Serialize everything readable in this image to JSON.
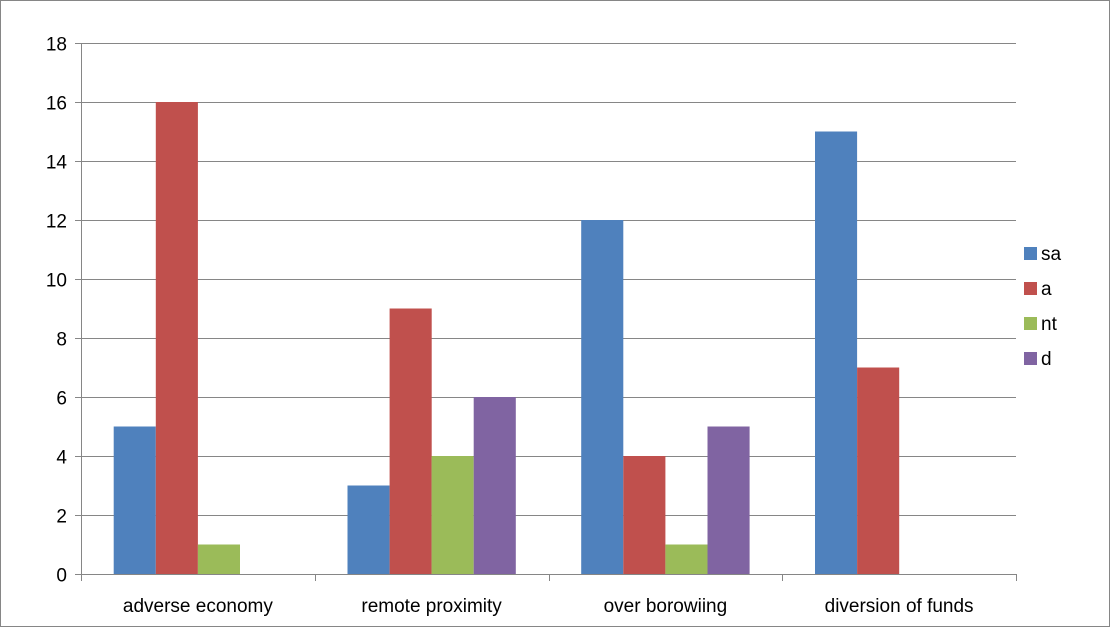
{
  "chart_data": {
    "type": "bar",
    "title": "",
    "xlabel": "",
    "ylabel": "",
    "categories": [
      "adverse economy",
      "remote proximity",
      "over borowiing",
      "diversion of funds"
    ],
    "series": [
      {
        "name": "sa",
        "color": "#4F81BD",
        "values": [
          5,
          3,
          12,
          15
        ]
      },
      {
        "name": "a",
        "color": "#C0504D",
        "values": [
          16,
          9,
          4,
          7
        ]
      },
      {
        "name": "nt",
        "color": "#9BBB59",
        "values": [
          1,
          4,
          1,
          0
        ]
      },
      {
        "name": "d",
        "color": "#8064A2",
        "values": [
          0,
          6,
          5,
          0
        ]
      }
    ],
    "ylim": [
      0,
      18
    ],
    "y_ticks": [
      0,
      2,
      4,
      6,
      8,
      10,
      12,
      14,
      16,
      18
    ],
    "grid": true,
    "legend_position": "right"
  }
}
